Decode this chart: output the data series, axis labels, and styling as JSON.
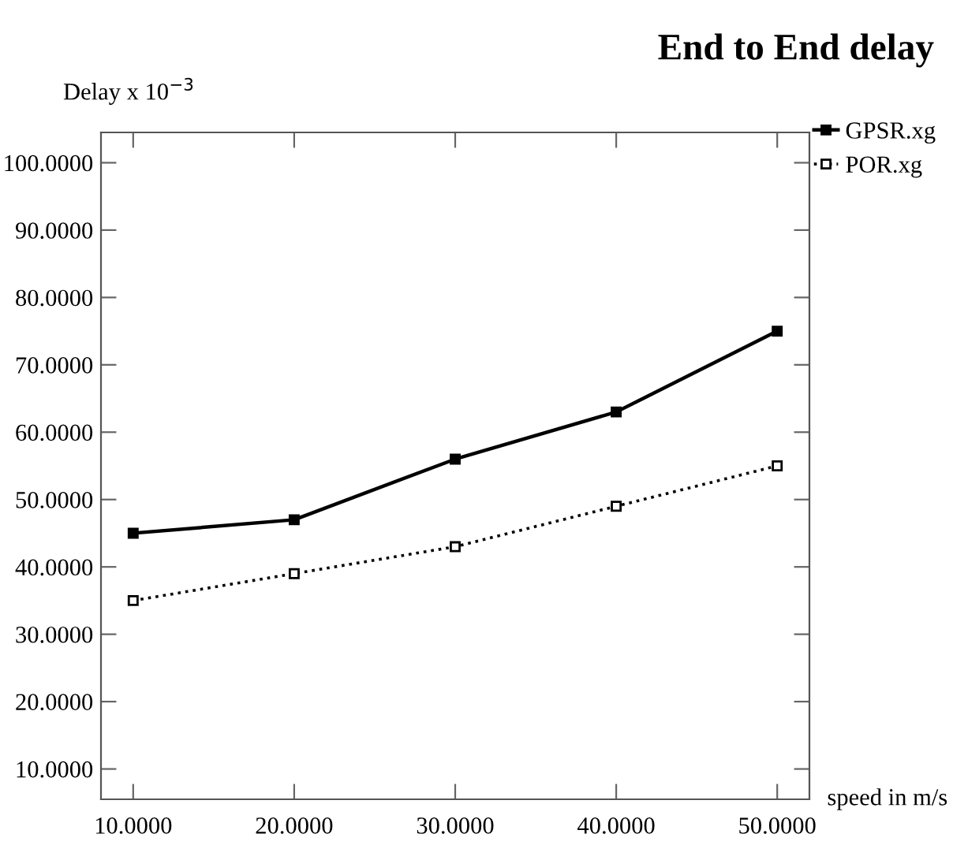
{
  "chart_data": {
    "type": "line",
    "title": "End to End delay",
    "xlabel": "speed in m/s",
    "ylabel": "Delay x 10$^{−3}$",
    "x": [
      10,
      20,
      30,
      40,
      50
    ],
    "series": [
      {
        "name": "GPSR.xg",
        "color": "#000000",
        "line_style": "solid",
        "values": [
          45,
          47,
          56,
          63,
          75
        ]
      },
      {
        "name": "POR.xg",
        "color": "#000000",
        "line_style": "dotted",
        "values": [
          35,
          39,
          43,
          49,
          55
        ]
      }
    ],
    "xlim": [
      8,
      52
    ],
    "ylim": [
      5.5,
      104.5
    ],
    "xticks": [
      {
        "value": 10,
        "label": "10.0000"
      },
      {
        "value": 20,
        "label": "20.0000"
      },
      {
        "value": 30,
        "label": "30.0000"
      },
      {
        "value": 40,
        "label": "40.0000"
      },
      {
        "value": 50,
        "label": "50.0000"
      }
    ],
    "yticks": [
      {
        "value": 10,
        "label": "10.0000"
      },
      {
        "value": 20,
        "label": "20.0000"
      },
      {
        "value": 30,
        "label": "30.0000"
      },
      {
        "value": 40,
        "label": "40.0000"
      },
      {
        "value": 50,
        "label": "50.0000"
      },
      {
        "value": 60,
        "label": "60.0000"
      },
      {
        "value": 70,
        "label": "70.0000"
      },
      {
        "value": 80,
        "label": "80.0000"
      },
      {
        "value": 90,
        "label": "90.0000"
      },
      {
        "value": 100,
        "label": "100.0000"
      }
    ],
    "marker": "square",
    "grid": false,
    "legend": "top right"
  }
}
